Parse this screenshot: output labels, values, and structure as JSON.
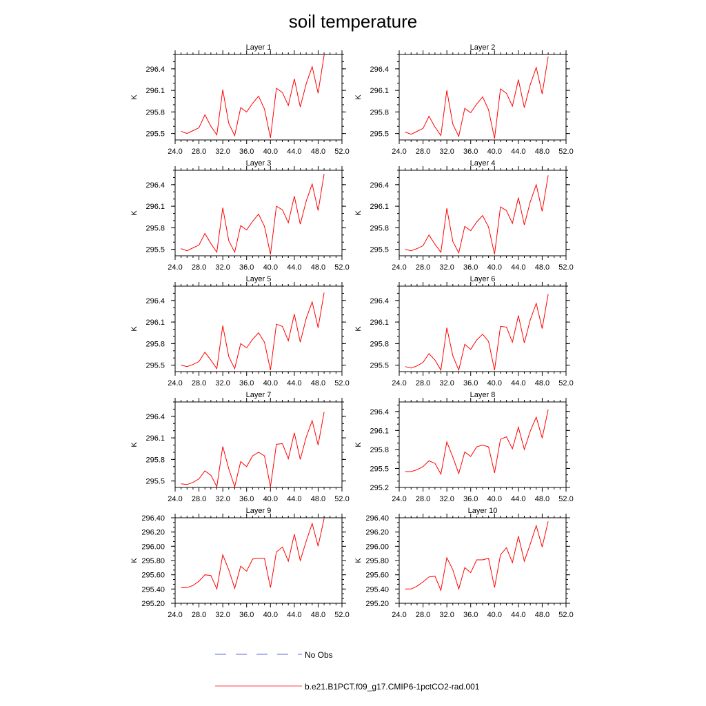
{
  "title": "soil temperature",
  "legend": {
    "obs_label": "No Obs",
    "model_label": "b.e21.B1PCT.f09_g17.CMIP6-1pctCO2-rad.001",
    "obs_color": "#5b6bd6",
    "model_color": "#ff0000"
  },
  "chart_data": [
    {
      "type": "line",
      "title": "Layer 1",
      "ylabel": "K",
      "xlim": [
        24,
        52
      ],
      "ylim": [
        295.41,
        296.6
      ],
      "xticks": [
        "24.0",
        "28.0",
        "32.0",
        "36.0",
        "40.0",
        "44.0",
        "48.0",
        "52.0"
      ],
      "yticks": [
        {
          "v": 295.5,
          "label": "295.5"
        },
        {
          "v": 295.8,
          "label": "295.8"
        },
        {
          "v": 296.1,
          "label": "296.1"
        },
        {
          "v": 296.4,
          "label": "296.4"
        }
      ],
      "series": [
        {
          "x": [
            25,
            26,
            27,
            28,
            29,
            30,
            31,
            32,
            33,
            34,
            35,
            36,
            37,
            38,
            39,
            40,
            41,
            42,
            43,
            44,
            45,
            46,
            47,
            48,
            49
          ],
          "values": [
            295.53,
            295.5,
            295.54,
            295.58,
            295.76,
            295.6,
            295.48,
            296.11,
            295.64,
            295.47,
            295.86,
            295.8,
            295.92,
            296.02,
            295.84,
            295.44,
            296.13,
            296.07,
            295.89,
            296.26,
            295.87,
            296.19,
            296.43,
            296.06,
            296.59
          ]
        }
      ]
    },
    {
      "type": "line",
      "title": "Layer 2",
      "ylabel": "K",
      "xlim": [
        24,
        52
      ],
      "ylim": [
        295.41,
        296.6
      ],
      "xticks": [
        "24.0",
        "28.0",
        "32.0",
        "36.0",
        "40.0",
        "44.0",
        "48.0",
        "52.0"
      ],
      "yticks": [
        {
          "v": 295.5,
          "label": "295.5"
        },
        {
          "v": 295.8,
          "label": "295.8"
        },
        {
          "v": 296.1,
          "label": "296.1"
        },
        {
          "v": 296.4,
          "label": "296.4"
        }
      ],
      "series": [
        {
          "x": [
            25,
            26,
            27,
            28,
            29,
            30,
            31,
            32,
            33,
            34,
            35,
            36,
            37,
            38,
            39,
            40,
            41,
            42,
            43,
            44,
            45,
            46,
            47,
            48,
            49
          ],
          "values": [
            295.52,
            295.49,
            295.53,
            295.57,
            295.74,
            295.59,
            295.47,
            296.1,
            295.63,
            295.46,
            295.85,
            295.79,
            295.91,
            296.01,
            295.83,
            295.43,
            296.12,
            296.06,
            295.88,
            296.25,
            295.86,
            296.18,
            296.42,
            296.05,
            296.57
          ]
        }
      ]
    },
    {
      "type": "line",
      "title": "Layer 3",
      "ylabel": "K",
      "xlim": [
        24,
        52
      ],
      "ylim": [
        295.41,
        296.6
      ],
      "xticks": [
        "24.0",
        "28.0",
        "32.0",
        "36.0",
        "40.0",
        "44.0",
        "48.0",
        "52.0"
      ],
      "yticks": [
        {
          "v": 295.5,
          "label": "295.5"
        },
        {
          "v": 295.8,
          "label": "295.8"
        },
        {
          "v": 296.1,
          "label": "296.1"
        },
        {
          "v": 296.4,
          "label": "296.4"
        }
      ],
      "series": [
        {
          "x": [
            25,
            26,
            27,
            28,
            29,
            30,
            31,
            32,
            33,
            34,
            35,
            36,
            37,
            38,
            39,
            40,
            41,
            42,
            43,
            44,
            45,
            46,
            47,
            48,
            49
          ],
          "values": [
            295.51,
            295.48,
            295.52,
            295.56,
            295.72,
            295.58,
            295.46,
            296.08,
            295.62,
            295.46,
            295.83,
            295.77,
            295.89,
            295.99,
            295.82,
            295.43,
            296.1,
            296.05,
            295.87,
            296.24,
            295.85,
            296.17,
            296.41,
            296.04,
            296.55
          ]
        }
      ]
    },
    {
      "type": "line",
      "title": "Layer 4",
      "ylabel": "K",
      "xlim": [
        24,
        52
      ],
      "ylim": [
        295.41,
        296.6
      ],
      "xticks": [
        "24.0",
        "28.0",
        "32.0",
        "36.0",
        "40.0",
        "44.0",
        "48.0",
        "52.0"
      ],
      "yticks": [
        {
          "v": 295.5,
          "label": "295.5"
        },
        {
          "v": 295.8,
          "label": "295.8"
        },
        {
          "v": 296.1,
          "label": "296.1"
        },
        {
          "v": 296.4,
          "label": "296.4"
        }
      ],
      "series": [
        {
          "x": [
            25,
            26,
            27,
            28,
            29,
            30,
            31,
            32,
            33,
            34,
            35,
            36,
            37,
            38,
            39,
            40,
            41,
            42,
            43,
            44,
            45,
            46,
            47,
            48,
            49
          ],
          "values": [
            295.5,
            295.48,
            295.51,
            295.55,
            295.7,
            295.57,
            295.46,
            296.07,
            295.61,
            295.45,
            295.82,
            295.76,
            295.88,
            295.97,
            295.81,
            295.43,
            296.09,
            296.04,
            295.86,
            296.22,
            295.84,
            296.16,
            296.4,
            296.03,
            296.53
          ]
        }
      ]
    },
    {
      "type": "line",
      "title": "Layer 5",
      "ylabel": "K",
      "xlim": [
        24,
        52
      ],
      "ylim": [
        295.41,
        296.6
      ],
      "xticks": [
        "24.0",
        "28.0",
        "32.0",
        "36.0",
        "40.0",
        "44.0",
        "48.0",
        "52.0"
      ],
      "yticks": [
        {
          "v": 295.5,
          "label": "295.5"
        },
        {
          "v": 295.8,
          "label": "295.8"
        },
        {
          "v": 296.1,
          "label": "296.1"
        },
        {
          "v": 296.4,
          "label": "296.4"
        }
      ],
      "series": [
        {
          "x": [
            25,
            26,
            27,
            28,
            29,
            30,
            31,
            32,
            33,
            34,
            35,
            36,
            37,
            38,
            39,
            40,
            41,
            42,
            43,
            44,
            45,
            46,
            47,
            48,
            49
          ],
          "values": [
            295.5,
            295.48,
            295.51,
            295.55,
            295.68,
            295.57,
            295.45,
            296.05,
            295.62,
            295.45,
            295.8,
            295.74,
            295.86,
            295.95,
            295.82,
            295.43,
            296.07,
            296.04,
            295.84,
            296.21,
            295.82,
            296.15,
            296.38,
            296.02,
            296.51
          ]
        }
      ]
    },
    {
      "type": "line",
      "title": "Layer 6",
      "ylabel": "K",
      "xlim": [
        24,
        52
      ],
      "ylim": [
        295.41,
        296.6
      ],
      "xticks": [
        "24.0",
        "28.0",
        "32.0",
        "36.0",
        "40.0",
        "44.0",
        "48.0",
        "52.0"
      ],
      "yticks": [
        {
          "v": 295.5,
          "label": "295.5"
        },
        {
          "v": 295.8,
          "label": "295.8"
        },
        {
          "v": 296.1,
          "label": "296.1"
        },
        {
          "v": 296.4,
          "label": "296.4"
        }
      ],
      "series": [
        {
          "x": [
            25,
            26,
            27,
            28,
            29,
            30,
            31,
            32,
            33,
            34,
            35,
            36,
            37,
            38,
            39,
            40,
            41,
            42,
            43,
            44,
            45,
            46,
            47,
            48,
            49
          ],
          "values": [
            295.48,
            295.46,
            295.49,
            295.54,
            295.66,
            295.57,
            295.43,
            296.02,
            295.63,
            295.43,
            295.79,
            295.72,
            295.85,
            295.93,
            295.83,
            295.43,
            296.04,
            296.03,
            295.82,
            296.19,
            295.81,
            296.13,
            296.36,
            296.01,
            296.49
          ]
        }
      ]
    },
    {
      "type": "line",
      "title": "Layer 7",
      "ylabel": "K",
      "xlim": [
        24,
        52
      ],
      "ylim": [
        295.41,
        296.6
      ],
      "xticks": [
        "24.0",
        "28.0",
        "32.0",
        "36.0",
        "40.0",
        "44.0",
        "48.0",
        "52.0"
      ],
      "yticks": [
        {
          "v": 295.5,
          "label": "295.5"
        },
        {
          "v": 295.8,
          "label": "295.8"
        },
        {
          "v": 296.1,
          "label": "296.1"
        },
        {
          "v": 296.4,
          "label": "296.4"
        }
      ],
      "series": [
        {
          "x": [
            25,
            26,
            27,
            28,
            29,
            30,
            31,
            32,
            33,
            34,
            35,
            36,
            37,
            38,
            39,
            40,
            41,
            42,
            43,
            44,
            45,
            46,
            47,
            48,
            49
          ],
          "values": [
            295.46,
            295.45,
            295.48,
            295.53,
            295.64,
            295.58,
            295.42,
            295.98,
            295.67,
            295.42,
            295.77,
            295.7,
            295.85,
            295.9,
            295.85,
            295.42,
            296.01,
            296.02,
            295.81,
            296.17,
            295.8,
            296.11,
            296.34,
            296.0,
            296.46
          ]
        }
      ]
    },
    {
      "type": "line",
      "title": "Layer 8",
      "ylabel": "K",
      "xlim": [
        24,
        52
      ],
      "ylim": [
        295.2,
        296.55
      ],
      "xticks": [
        "24.0",
        "28.0",
        "32.0",
        "36.0",
        "40.0",
        "44.0",
        "48.0",
        "52.0"
      ],
      "yticks": [
        {
          "v": 295.2,
          "label": "295.2"
        },
        {
          "v": 295.5,
          "label": "295.5"
        },
        {
          "v": 295.8,
          "label": "295.8"
        },
        {
          "v": 296.1,
          "label": "296.1"
        },
        {
          "v": 296.4,
          "label": "296.4"
        }
      ],
      "series": [
        {
          "x": [
            25,
            26,
            27,
            28,
            29,
            30,
            31,
            32,
            33,
            34,
            35,
            36,
            37,
            38,
            39,
            40,
            41,
            42,
            43,
            44,
            45,
            46,
            47,
            48,
            49
          ],
          "values": [
            295.45,
            295.45,
            295.48,
            295.53,
            295.62,
            295.58,
            295.41,
            295.92,
            295.68,
            295.42,
            295.76,
            295.69,
            295.84,
            295.87,
            295.84,
            295.43,
            295.96,
            296.0,
            295.81,
            296.15,
            295.8,
            296.09,
            296.31,
            295.98,
            296.43
          ]
        }
      ]
    },
    {
      "type": "line",
      "title": "Layer 9",
      "ylabel": "K",
      "xlim": [
        24,
        52
      ],
      "ylim": [
        295.2,
        296.4
      ],
      "xticks": [
        "24.0",
        "28.0",
        "32.0",
        "36.0",
        "40.0",
        "44.0",
        "48.0",
        "52.0"
      ],
      "yticks": [
        {
          "v": 295.2,
          "label": "295.20"
        },
        {
          "v": 295.4,
          "label": "295.40"
        },
        {
          "v": 295.6,
          "label": "295.60"
        },
        {
          "v": 295.8,
          "label": "295.80"
        },
        {
          "v": 296.0,
          "label": "296.00"
        },
        {
          "v": 296.2,
          "label": "296.20"
        },
        {
          "v": 296.4,
          "label": "296.40"
        }
      ],
      "series": [
        {
          "x": [
            25,
            26,
            27,
            28,
            29,
            30,
            31,
            32,
            33,
            34,
            35,
            36,
            37,
            38,
            39,
            40,
            41,
            42,
            43,
            44,
            45,
            46,
            47,
            48,
            49
          ],
          "values": [
            295.42,
            295.42,
            295.45,
            295.51,
            295.6,
            295.59,
            295.4,
            295.88,
            295.67,
            295.41,
            295.72,
            295.65,
            295.82,
            295.83,
            295.83,
            295.42,
            295.92,
            295.99,
            295.79,
            296.17,
            295.8,
            296.07,
            296.32,
            296.0,
            296.39
          ]
        }
      ]
    },
    {
      "type": "line",
      "title": "Layer 10",
      "ylabel": "K",
      "xlim": [
        24,
        52
      ],
      "ylim": [
        295.2,
        296.4
      ],
      "xticks": [
        "24.0",
        "28.0",
        "32.0",
        "36.0",
        "40.0",
        "44.0",
        "48.0",
        "52.0"
      ],
      "yticks": [
        {
          "v": 295.2,
          "label": "295.20"
        },
        {
          "v": 295.4,
          "label": "295.40"
        },
        {
          "v": 295.6,
          "label": "295.60"
        },
        {
          "v": 295.8,
          "label": "295.80"
        },
        {
          "v": 296.0,
          "label": "296.00"
        },
        {
          "v": 296.2,
          "label": "296.20"
        },
        {
          "v": 296.4,
          "label": "296.40"
        }
      ],
      "series": [
        {
          "x": [
            25,
            26,
            27,
            28,
            29,
            30,
            31,
            32,
            33,
            34,
            35,
            36,
            37,
            38,
            39,
            40,
            41,
            42,
            43,
            44,
            45,
            46,
            47,
            48,
            49
          ],
          "values": [
            295.4,
            295.4,
            295.44,
            295.5,
            295.57,
            295.58,
            295.38,
            295.84,
            295.67,
            295.4,
            295.7,
            295.63,
            295.81,
            295.81,
            295.83,
            295.42,
            295.88,
            295.98,
            295.77,
            296.14,
            295.79,
            296.03,
            296.29,
            295.99,
            296.35
          ]
        }
      ]
    }
  ]
}
